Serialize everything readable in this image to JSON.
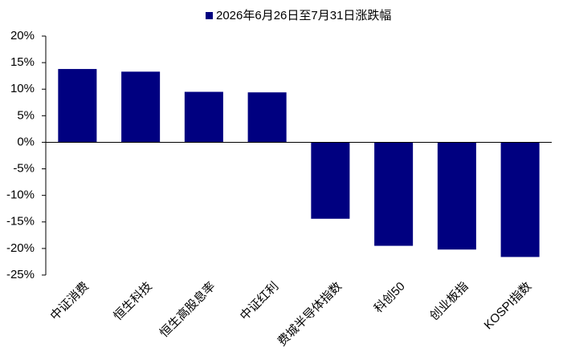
{
  "chart_data": {
    "type": "bar",
    "categories": [
      "中证消费",
      "恒生科技",
      "恒生高股息率",
      "中证红利",
      "费城半导体指数",
      "科创50",
      "创业板指",
      "KOSPI指数"
    ],
    "series": [
      {
        "name": "2026年6月26日至7月31日涨跌幅",
        "color": "#000080",
        "values": [
          13.8,
          13.3,
          9.5,
          9.4,
          -14.4,
          -19.5,
          -20.2,
          -21.6
        ]
      }
    ],
    "ylim": [
      -25,
      20
    ],
    "yticks": [
      {
        "value": -25,
        "label": "-25%"
      },
      {
        "value": -20,
        "label": "-20%"
      },
      {
        "value": -15,
        "label": "-15%"
      },
      {
        "value": -10,
        "label": "-10%"
      },
      {
        "value": -5,
        "label": "-5%"
      },
      {
        "value": 0,
        "label": "0%"
      },
      {
        "value": 5,
        "label": "5%"
      },
      {
        "value": 10,
        "label": "10%"
      },
      {
        "value": 15,
        "label": "15%"
      },
      {
        "value": 20,
        "label": "20%"
      }
    ],
    "negative_tick_label_color": "#ff0000",
    "legend": "top",
    "grid": false
  }
}
